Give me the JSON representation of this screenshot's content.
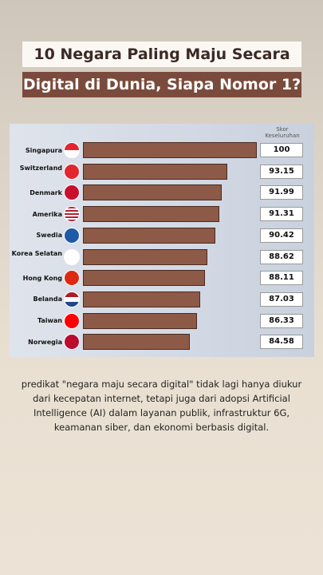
{
  "chart_data": {
    "type": "bar",
    "orientation": "horizontal",
    "title": "10 Negara Paling Maju Secara",
    "subtitle": "Digital di Dunia, Siapa Nomor 1?",
    "value_header": "Skor Keseluruhan",
    "categories": [
      "Singapura",
      "Switzerland",
      "Denmark",
      "Amerika",
      "Swedia",
      "Korea Selatan",
      "Hong Kong",
      "Belanda",
      "Taiwan",
      "Norwegia"
    ],
    "values": [
      100,
      93.15,
      91.99,
      91.31,
      90.42,
      88.62,
      88.11,
      87.03,
      86.33,
      84.58
    ],
    "value_labels": [
      "100",
      "93.15",
      "91.99",
      "91.31",
      "90.42",
      "88.62",
      "88.11",
      "87.03",
      "86.33",
      "84.58"
    ],
    "xlim": [
      60,
      100
    ],
    "color": "#8d5a48"
  },
  "caption": "predikat \"negara maju secara digital\" tidak lagi hanya diukur dari kecepatan internet, tetapi juga dari adopsi Artificial Intelligence (AI) dalam layanan publik, infrastruktur 6G, keamanan siber, dan ekonomi berbasis digital."
}
